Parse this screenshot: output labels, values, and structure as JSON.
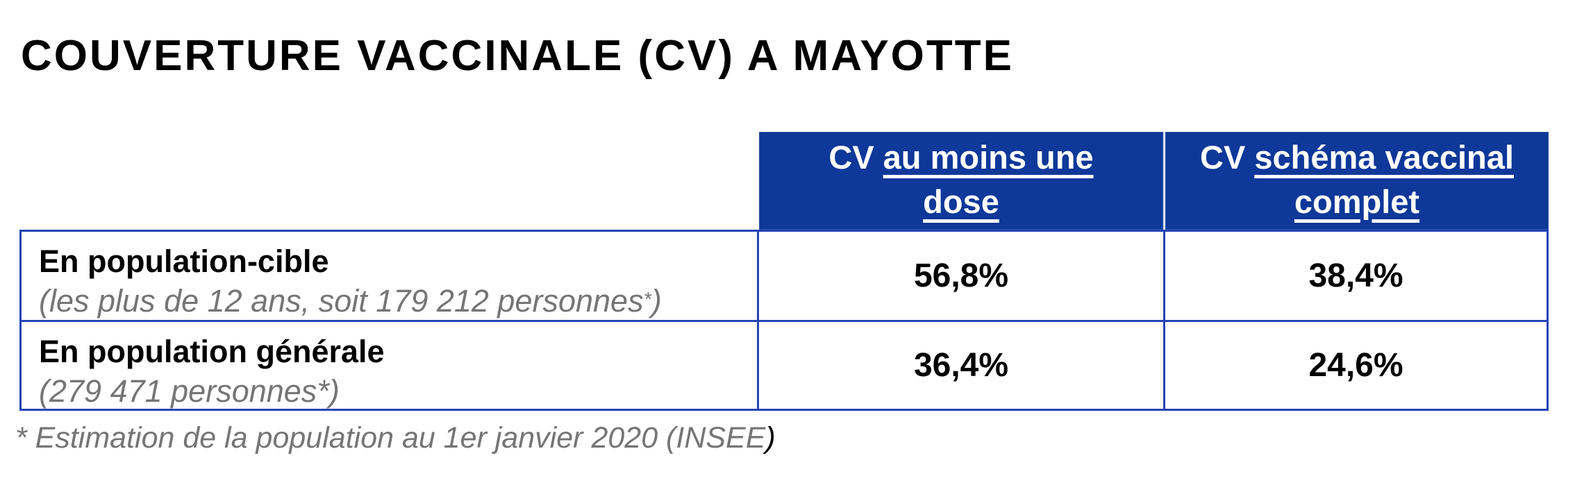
{
  "colors": {
    "header_fill": "#0E3899",
    "table_border": "#2443B4",
    "muted_text": "#757575",
    "header_divider": "#D9E0F4",
    "text": "#000000"
  },
  "title": "COUVERTURE VACCINALE (CV) A MAYOTTE",
  "table": {
    "header": {
      "columns": [
        {
          "prefix": "CV",
          "underline_line1": "au moins une",
          "underline_line2": "dose"
        },
        {
          "prefix": "CV",
          "underline_line1": "schéma vaccinal",
          "underline_line2": "complet"
        }
      ]
    },
    "rows": [
      {
        "label": "En population-cible",
        "sublabel": "(les plus de 12 ans, soit 179 212 personnes",
        "asterisk": "*",
        "sublabel_close": ")",
        "values": [
          "56,8%",
          "38,4%"
        ]
      },
      {
        "label": "En population générale",
        "sublabel": "(279 471 personnes",
        "asterisk": "*",
        "sublabel_close": ")",
        "values": [
          "36,4%",
          "24,6%"
        ]
      }
    ]
  },
  "footnote": {
    "text": "* Estimation de la population au 1er janvier 2020 (INSEE",
    "closing": ")"
  },
  "chart_data": {
    "type": "table",
    "title": "COUVERTURE VACCINALE (CV) A MAYOTTE",
    "columns": [
      "",
      "CV au moins une dose",
      "CV schéma vaccinal complet"
    ],
    "rows": [
      {
        "label": "En population-cible (les plus de 12 ans, soit 179 212 personnes*)",
        "cv_au_moins_une_dose_pct": 56.8,
        "cv_schema_vaccinal_complet_pct": 38.4
      },
      {
        "label": "En population générale (279 471 personnes*)",
        "cv_au_moins_une_dose_pct": 36.4,
        "cv_schema_vaccinal_complet_pct": 24.6
      }
    ],
    "footnote": "* Estimation de la population au 1er janvier 2020 (INSEE)"
  }
}
